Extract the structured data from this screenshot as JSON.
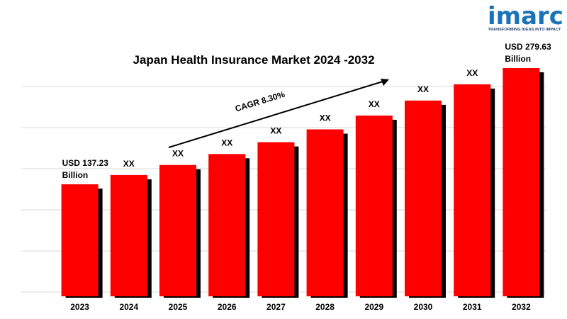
{
  "brand": {
    "logo_text": "imarc",
    "tagline": "TRANSFORMING IDEAS INTO IMPACT",
    "colors": {
      "primary": "#1a73b8",
      "accent": "#29b6e8",
      "tagline": "#1a3f6b"
    }
  },
  "chart_data": {
    "type": "bar",
    "title": "Japan Health Insurance Market 2024 -2032",
    "xlabel": "",
    "ylabel": "",
    "categories": [
      "2023",
      "2024",
      "2025",
      "2026",
      "2027",
      "2028",
      "2029",
      "2030",
      "2031",
      "2032"
    ],
    "series": [
      {
        "values": [
          137.23,
          148.6,
          160.9,
          174.3,
          188.8,
          204.5,
          221.4,
          239.8,
          259.7,
          279.63
        ],
        "data_labels": [
          "USD 137.23 Billion",
          "XX",
          "XX",
          "XX",
          "XX",
          "XX",
          "XX",
          "XX",
          "XX",
          "USD 279.63 Billion"
        ],
        "color": "#ff0000"
      }
    ],
    "ylim": [
      0,
      279.63
    ],
    "grid": true,
    "legend": "none",
    "annotation": {
      "text": "CAGR 8.30%",
      "kind": "arrow"
    },
    "colors": {
      "bar": "#ff0000",
      "shadow": "#000000",
      "grid": "#d9d9d9",
      "text": "#000000"
    }
  }
}
